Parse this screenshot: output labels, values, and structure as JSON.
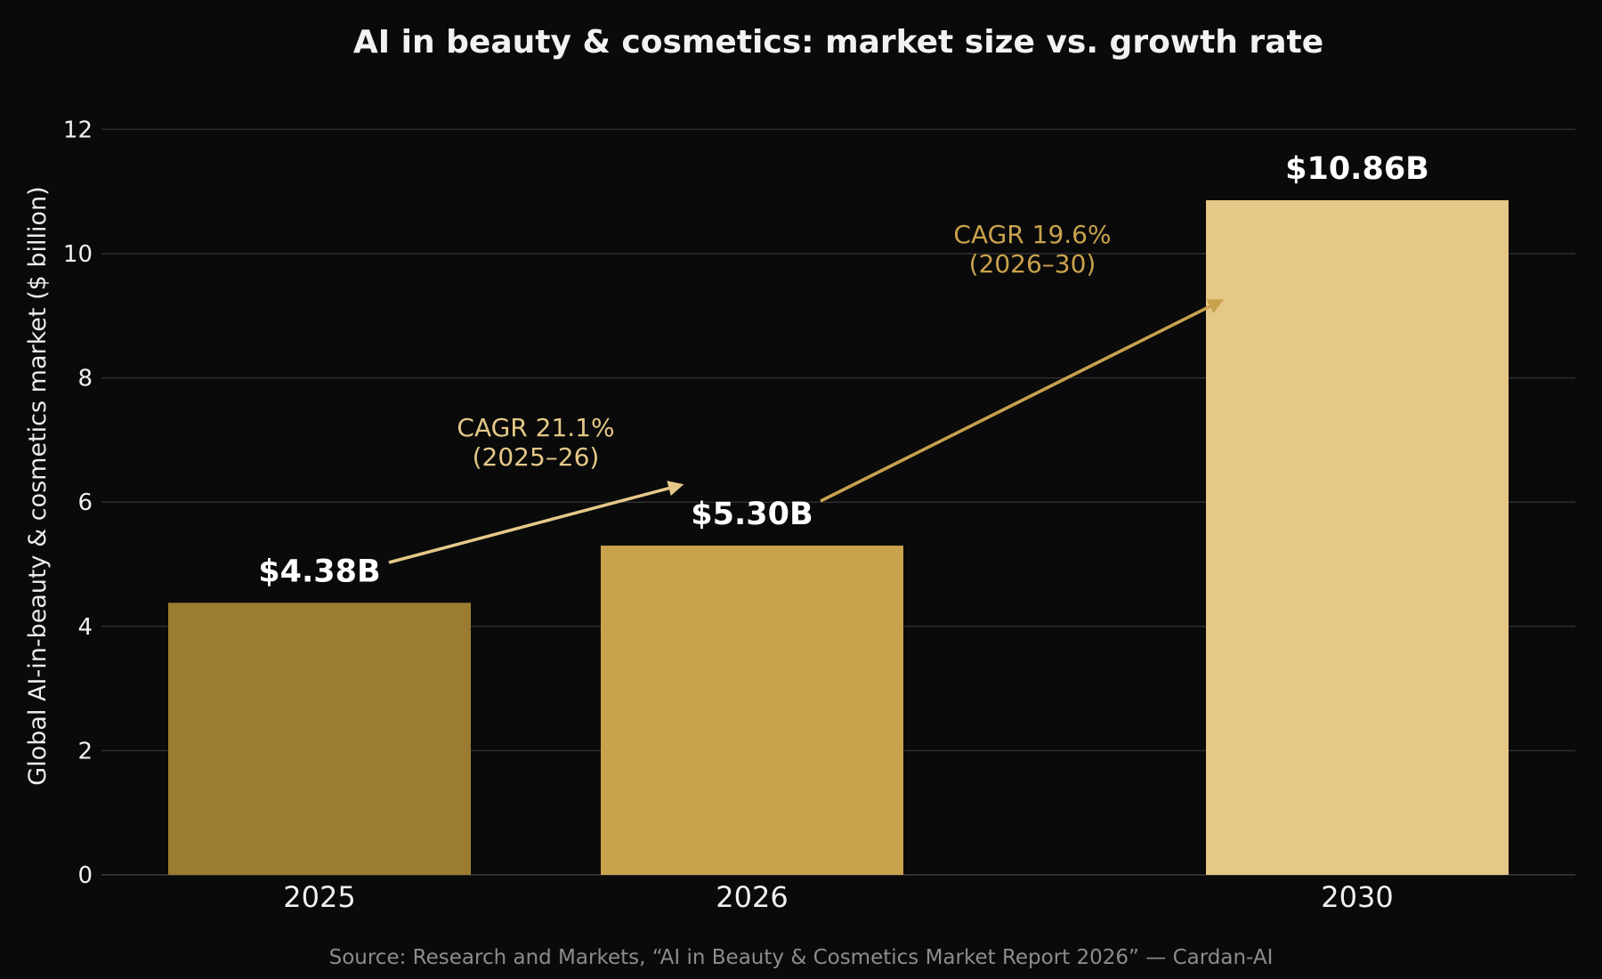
{
  "chart_data": {
    "type": "bar",
    "title": "AI in beauty & cosmetics: market size vs. growth rate",
    "ylabel": "Global AI-in-beauty & cosmetics market ($ billion)",
    "xlabel": "",
    "ylim": [
      0,
      12
    ],
    "yticks": [
      0,
      2,
      4,
      6,
      8,
      10,
      12
    ],
    "grid": true,
    "x": [
      2025,
      2026,
      2030
    ],
    "categories": [
      "2025",
      "2026",
      "2030"
    ],
    "values": [
      4.38,
      5.3,
      10.86
    ],
    "data_labels": [
      "$4.38B",
      "$5.30B",
      "$10.86B"
    ],
    "colors": [
      "#9c7c30",
      "#c9a24d",
      "#e5c888"
    ],
    "annotations": [
      {
        "from_category": "2025",
        "to_category": "2026",
        "text_line1": "CAGR 21.1%",
        "text_line2": "(2025–26)",
        "color": "#e5c888"
      },
      {
        "from_category": "2026",
        "to_category": "2030",
        "text_line1": "CAGR 19.6%",
        "text_line2": "(2026–30)",
        "color": "#c9a24d"
      }
    ],
    "source": "Source: Research and Markets, “AI in Beauty & Cosmetics Market Report 2026” — Cardan-AI"
  },
  "colors": {
    "background": "#0a0a0a",
    "grid": "#2e2e2e",
    "text": "#f0f0f0",
    "source_text": "#8c8c8c"
  }
}
